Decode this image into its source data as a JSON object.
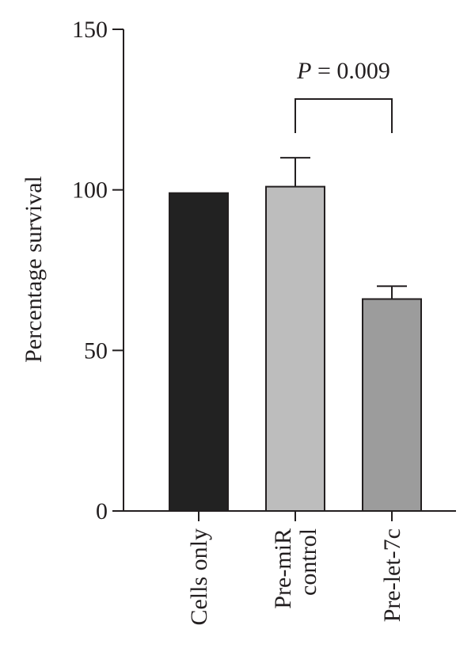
{
  "chart_data": {
    "type": "bar",
    "categories": [
      [
        "Cells only"
      ],
      [
        "Pre-miR",
        "control"
      ],
      [
        "Pre-let-7c"
      ]
    ],
    "values": [
      99,
      101,
      66
    ],
    "errors": [
      0,
      9,
      4
    ],
    "bar_colors": [
      "#222222",
      "#bdbdbd",
      "#9c9c9c"
    ],
    "ylabel": "Percentage survival",
    "xlabel": "",
    "title": "",
    "ylim": [
      0,
      150
    ],
    "yticks": [
      0,
      50,
      100,
      150
    ],
    "grid": false,
    "annotation": {
      "text_italic": "P",
      "text_rest": " = 0.009",
      "from_category": 1,
      "to_category": 2
    }
  }
}
